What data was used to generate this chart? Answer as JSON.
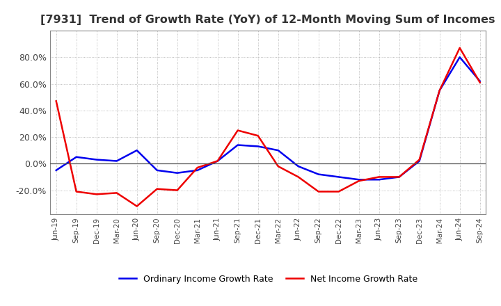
{
  "title": "[7931]  Trend of Growth Rate (YoY) of 12-Month Moving Sum of Incomes",
  "title_fontsize": 11.5,
  "ylim": [
    -38,
    100
  ],
  "yticks": [
    -20.0,
    0.0,
    20.0,
    40.0,
    60.0,
    80.0
  ],
  "background_color": "#ffffff",
  "grid_color": "#aaaaaa",
  "ordinary_color": "#0000ee",
  "net_color": "#ee0000",
  "x_labels": [
    "Jun-19",
    "Sep-19",
    "Dec-19",
    "Mar-20",
    "Jun-20",
    "Sep-20",
    "Dec-20",
    "Mar-21",
    "Jun-21",
    "Sep-21",
    "Dec-21",
    "Mar-22",
    "Jun-22",
    "Sep-22",
    "Dec-22",
    "Mar-23",
    "Jun-23",
    "Sep-23",
    "Dec-23",
    "Mar-24",
    "Jun-24",
    "Sep-24"
  ],
  "ordinary_income": [
    -5.0,
    5.0,
    3.0,
    2.0,
    10.0,
    -5.0,
    -7.0,
    -5.0,
    2.0,
    14.0,
    13.0,
    10.0,
    -2.0,
    -8.0,
    -10.0,
    -12.0,
    -12.0,
    -10.0,
    2.0,
    55.0,
    80.0,
    62.0
  ],
  "net_income": [
    47.0,
    -21.0,
    -23.0,
    -22.0,
    -32.0,
    -19.0,
    -20.0,
    -3.0,
    2.0,
    25.0,
    21.0,
    -2.0,
    -10.0,
    -21.0,
    -21.0,
    -13.0,
    -10.0,
    -10.0,
    3.0,
    55.0,
    87.0,
    61.0
  ],
  "legend_ordinary": "Ordinary Income Growth Rate",
  "legend_net": "Net Income Growth Rate"
}
